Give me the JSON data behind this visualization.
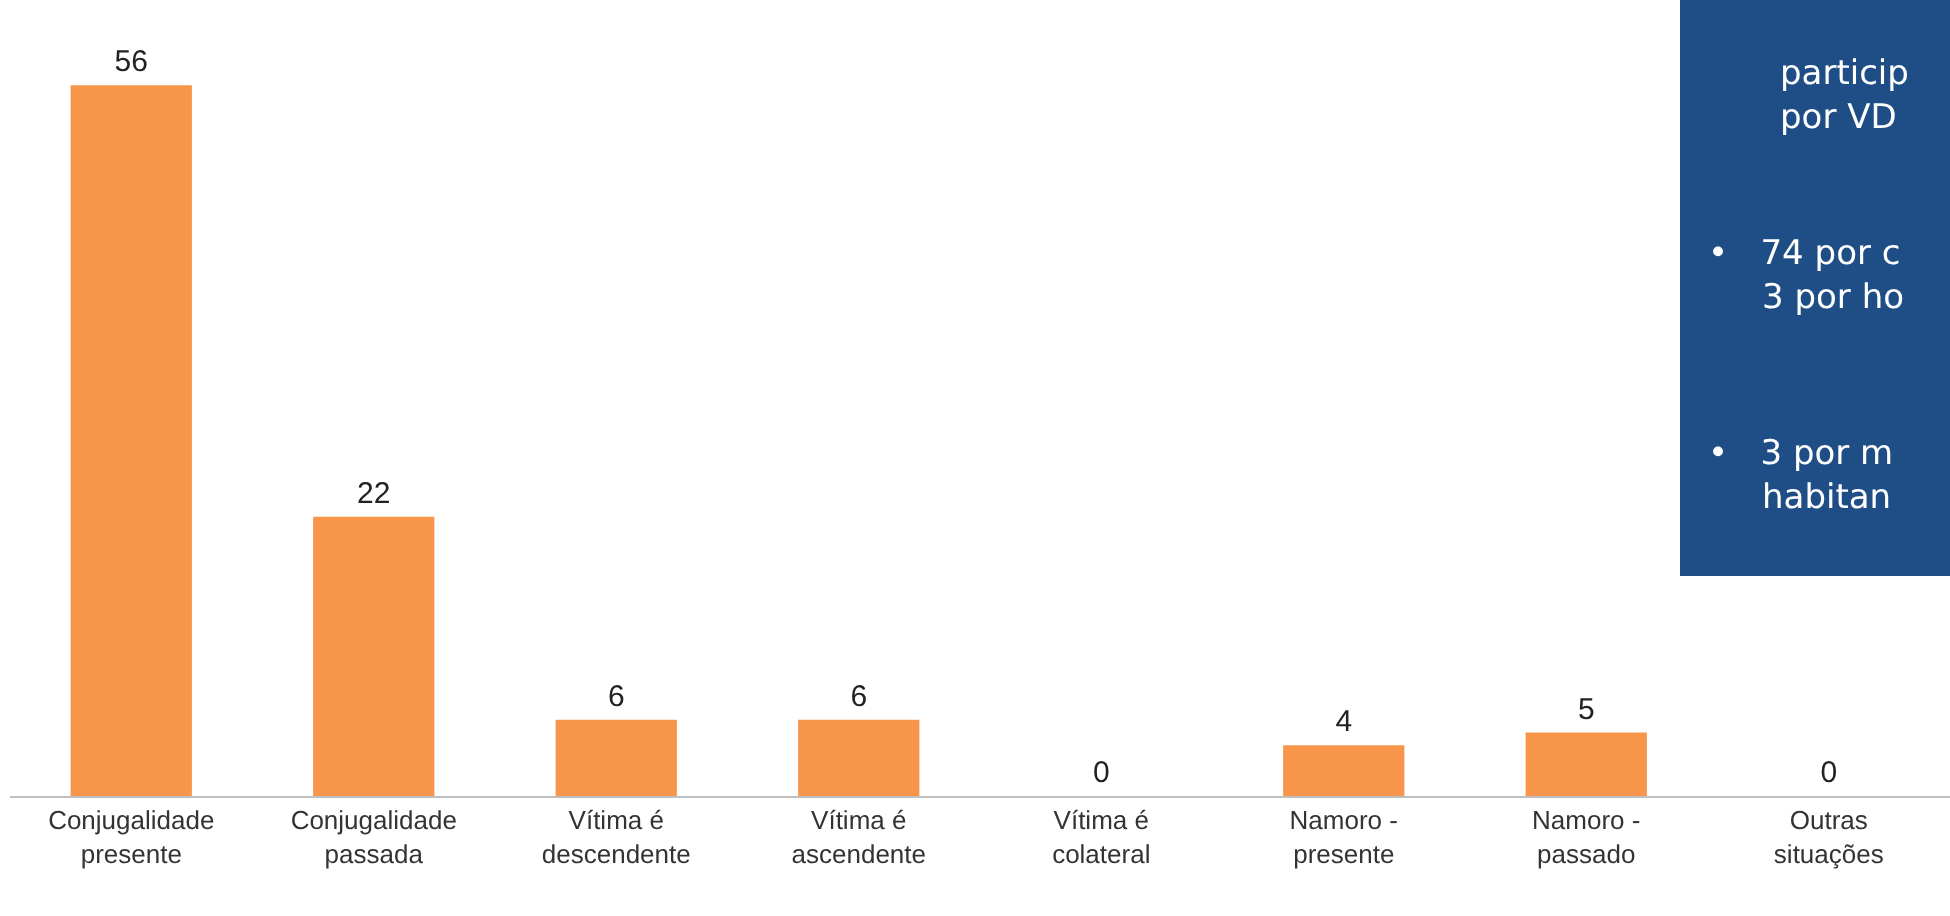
{
  "chart_data": {
    "type": "bar",
    "categories": [
      "Conjugalidade\npresente",
      "Conjugalidade\npassada",
      "Vítima é\ndescendente",
      "Vítima é\nascendente",
      "Vítima é\ncolateral",
      "Namoro -\npresente",
      "Namoro -\npassado",
      "Outras\nsituações"
    ],
    "values": [
      56,
      22,
      6,
      6,
      0,
      4,
      5,
      0
    ],
    "color": "#f7964a",
    "data_labels": true,
    "annotations": [
      "particip\npor VD",
      "•   74 por c\n     3 por ho",
      "•   3 por m\n     habitan"
    ]
  }
}
